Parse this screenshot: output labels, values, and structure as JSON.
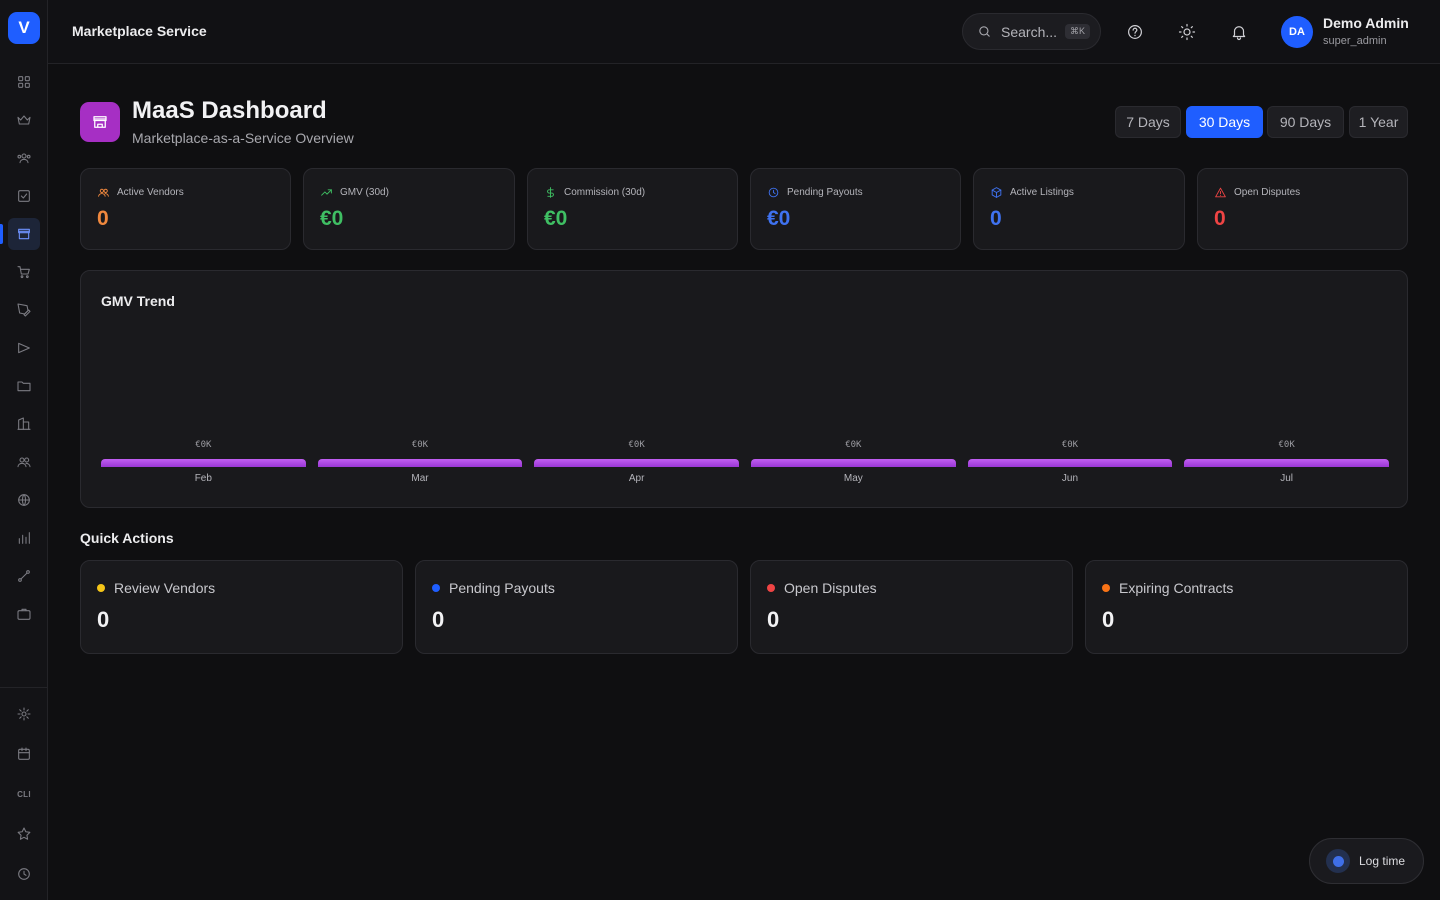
{
  "app": {
    "logo_letter": "V",
    "service_title": "Marketplace Service"
  },
  "search": {
    "placeholder": "Search...",
    "shortcut": "⌘K"
  },
  "user": {
    "initials": "DA",
    "name": "Demo Admin",
    "role": "super_admin"
  },
  "header": {
    "title": "MaaS Dashboard",
    "subtitle": "Marketplace-as-a-Service Overview"
  },
  "ranges": [
    "7 Days",
    "30 Days",
    "90 Days",
    "1 Year"
  ],
  "selected_range": "30 Days",
  "sidebar": {
    "cli_label": "CLI",
    "active_item": "marketplace"
  },
  "stats": [
    {
      "label": "Active Vendors",
      "value": "0",
      "icon": "users-icon",
      "color": "#f0883e"
    },
    {
      "label": "GMV (30d)",
      "value": "€0",
      "icon": "trending-up-icon",
      "color": "#3fbf63"
    },
    {
      "label": "Commission (30d)",
      "value": "€0",
      "icon": "dollar-icon",
      "color": "#3fbf63"
    },
    {
      "label": "Pending Payouts",
      "value": "€0",
      "icon": "clock-icon",
      "color": "#3f72f0"
    },
    {
      "label": "Active Listings",
      "value": "0",
      "icon": "box-icon",
      "color": "#3f72f0"
    },
    {
      "label": "Open Disputes",
      "value": "0",
      "icon": "alert-triangle-icon",
      "color": "#ef4444"
    }
  ],
  "chart_data": {
    "type": "bar",
    "title": "GMV Trend",
    "categories": [
      "Feb",
      "Mar",
      "Apr",
      "May",
      "Jun",
      "Jul"
    ],
    "values": [
      0,
      0,
      0,
      0,
      0,
      0
    ],
    "value_labels": [
      "€0K",
      "€0K",
      "€0K",
      "€0K",
      "€0K",
      "€0K"
    ],
    "grid": false,
    "legend": "none"
  },
  "quick_actions": {
    "title": "Quick Actions",
    "items": [
      {
        "label": "Review Vendors",
        "value": "0",
        "dot_color": "#f5c518"
      },
      {
        "label": "Pending Payouts",
        "value": "0",
        "dot_color": "#1f5eff"
      },
      {
        "label": "Open Disputes",
        "value": "0",
        "dot_color": "#ef4444"
      },
      {
        "label": "Expiring Contracts",
        "value": "0",
        "dot_color": "#f97316"
      }
    ]
  },
  "log_time": {
    "label": "Log time"
  }
}
